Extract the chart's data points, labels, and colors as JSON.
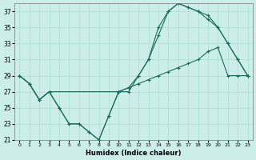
{
  "xlabel": "Humidex (Indice chaleur)",
  "bg_color": "#cceee8",
  "grid_color": "#aaddcc",
  "line_color": "#1a6b5a",
  "xlim": [
    -0.5,
    23.5
  ],
  "ylim": [
    21,
    38
  ],
  "yticks": [
    21,
    23,
    25,
    27,
    29,
    31,
    33,
    35,
    37
  ],
  "xticks": [
    0,
    1,
    2,
    3,
    4,
    5,
    6,
    7,
    8,
    9,
    10,
    11,
    12,
    13,
    14,
    15,
    16,
    17,
    18,
    19,
    20,
    21,
    22,
    23
  ],
  "line1_x": [
    0,
    1,
    2,
    3,
    4,
    5,
    6,
    7,
    8,
    9,
    10,
    11,
    12,
    13,
    14,
    15,
    16,
    17,
    18,
    19,
    20,
    21,
    22,
    23
  ],
  "line1_y": [
    29,
    28,
    26,
    27,
    25,
    23,
    23,
    22,
    21,
    24,
    27,
    27,
    29,
    31,
    35,
    37,
    38,
    37.5,
    37,
    36,
    35,
    33,
    31,
    29
  ],
  "line2_x": [
    0,
    1,
    2,
    3,
    10,
    11,
    12,
    13,
    14,
    15,
    16,
    17,
    18,
    19,
    20,
    21,
    22,
    23
  ],
  "line2_y": [
    29,
    28,
    26,
    27,
    27,
    27.5,
    29,
    31,
    34,
    37,
    38,
    37.5,
    37,
    36.5,
    35,
    33,
    31,
    29
  ],
  "line3_x": [
    0,
    1,
    2,
    3,
    4,
    5,
    6,
    7,
    8,
    9,
    10,
    11,
    12,
    13,
    14,
    15,
    16,
    17,
    18,
    19,
    20,
    21,
    22,
    23
  ],
  "line3_y": [
    29,
    28,
    26,
    27,
    25,
    23,
    23,
    22,
    21,
    24,
    27,
    27.5,
    28,
    28.5,
    29,
    29.5,
    30,
    30.5,
    31,
    32,
    32.5,
    29,
    29,
    29
  ]
}
